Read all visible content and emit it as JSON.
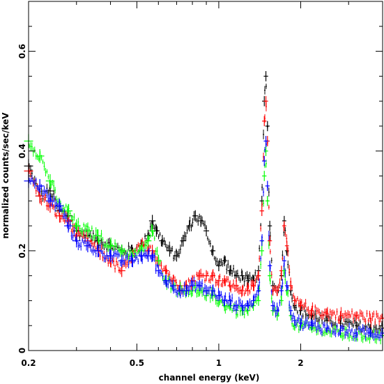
{
  "chart_data": {
    "type": "scatter",
    "xlabel": "channel energy (keV)",
    "ylabel": "normalized counts/sec/keV",
    "xscale": "log",
    "xlim": [
      0.2,
      4.0
    ],
    "ylim": [
      0,
      0.7
    ],
    "x_ticks": [
      {
        "value": 0.2,
        "label": "0.2"
      },
      {
        "value": 0.5,
        "label": "0.5"
      },
      {
        "value": 1,
        "label": "1"
      },
      {
        "value": 2,
        "label": "2"
      }
    ],
    "y_ticks": [
      {
        "value": 0,
        "label": "0"
      },
      {
        "value": 0.2,
        "label": "0.2"
      },
      {
        "value": 0.4,
        "label": "0.4"
      },
      {
        "value": 0.6,
        "label": "0.6"
      }
    ],
    "grid": false,
    "legend": "none",
    "series": [
      {
        "color": "#000000",
        "points": [
          [
            0.2,
            0.37
          ],
          [
            0.22,
            0.31
          ],
          [
            0.24,
            0.32
          ],
          [
            0.26,
            0.28
          ],
          [
            0.28,
            0.27
          ],
          [
            0.3,
            0.24
          ],
          [
            0.33,
            0.23
          ],
          [
            0.36,
            0.22
          ],
          [
            0.4,
            0.21
          ],
          [
            0.44,
            0.2
          ],
          [
            0.48,
            0.2
          ],
          [
            0.52,
            0.21
          ],
          [
            0.55,
            0.23
          ],
          [
            0.57,
            0.26
          ],
          [
            0.59,
            0.24
          ],
          [
            0.62,
            0.22
          ],
          [
            0.66,
            0.2
          ],
          [
            0.7,
            0.19
          ],
          [
            0.74,
            0.22
          ],
          [
            0.78,
            0.25
          ],
          [
            0.82,
            0.27
          ],
          [
            0.86,
            0.26
          ],
          [
            0.9,
            0.24
          ],
          [
            0.95,
            0.2
          ],
          [
            1.0,
            0.17
          ],
          [
            1.05,
            0.18
          ],
          [
            1.1,
            0.16
          ],
          [
            1.16,
            0.15
          ],
          [
            1.22,
            0.15
          ],
          [
            1.28,
            0.14
          ],
          [
            1.34,
            0.14
          ],
          [
            1.4,
            0.16
          ],
          [
            1.44,
            0.3
          ],
          [
            1.47,
            0.5
          ],
          [
            1.49,
            0.55
          ],
          [
            1.51,
            0.45
          ],
          [
            1.54,
            0.25
          ],
          [
            1.58,
            0.13
          ],
          [
            1.64,
            0.12
          ],
          [
            1.7,
            0.15
          ],
          [
            1.74,
            0.26
          ],
          [
            1.78,
            0.2
          ],
          [
            1.84,
            0.12
          ],
          [
            1.9,
            0.09
          ],
          [
            2.0,
            0.08
          ],
          [
            2.2,
            0.07
          ],
          [
            2.5,
            0.06
          ],
          [
            2.8,
            0.055
          ],
          [
            3.2,
            0.05
          ],
          [
            3.6,
            0.045
          ],
          [
            4.0,
            0.045
          ]
        ]
      },
      {
        "color": "#ff0000",
        "points": [
          [
            0.2,
            0.36
          ],
          [
            0.22,
            0.31
          ],
          [
            0.24,
            0.29
          ],
          [
            0.26,
            0.27
          ],
          [
            0.28,
            0.26
          ],
          [
            0.3,
            0.23
          ],
          [
            0.33,
            0.22
          ],
          [
            0.36,
            0.2
          ],
          [
            0.4,
            0.18
          ],
          [
            0.44,
            0.16
          ],
          [
            0.48,
            0.19
          ],
          [
            0.52,
            0.21
          ],
          [
            0.55,
            0.2
          ],
          [
            0.57,
            0.2
          ],
          [
            0.6,
            0.18
          ],
          [
            0.64,
            0.16
          ],
          [
            0.68,
            0.14
          ],
          [
            0.72,
            0.13
          ],
          [
            0.76,
            0.13
          ],
          [
            0.8,
            0.14
          ],
          [
            0.85,
            0.15
          ],
          [
            0.9,
            0.15
          ],
          [
            0.95,
            0.15
          ],
          [
            1.0,
            0.14
          ],
          [
            1.05,
            0.14
          ],
          [
            1.1,
            0.13
          ],
          [
            1.16,
            0.13
          ],
          [
            1.22,
            0.12
          ],
          [
            1.28,
            0.12
          ],
          [
            1.34,
            0.13
          ],
          [
            1.4,
            0.15
          ],
          [
            1.44,
            0.28
          ],
          [
            1.47,
            0.46
          ],
          [
            1.49,
            0.5
          ],
          [
            1.51,
            0.42
          ],
          [
            1.54,
            0.22
          ],
          [
            1.58,
            0.12
          ],
          [
            1.64,
            0.12
          ],
          [
            1.7,
            0.16
          ],
          [
            1.74,
            0.25
          ],
          [
            1.78,
            0.21
          ],
          [
            1.84,
            0.13
          ],
          [
            1.9,
            0.1
          ],
          [
            2.0,
            0.09
          ],
          [
            2.2,
            0.08
          ],
          [
            2.5,
            0.075
          ],
          [
            2.8,
            0.07
          ],
          [
            3.2,
            0.07
          ],
          [
            3.6,
            0.065
          ],
          [
            4.0,
            0.065
          ]
        ]
      },
      {
        "color": "#00ff00",
        "points": [
          [
            0.2,
            0.42
          ],
          [
            0.22,
            0.39
          ],
          [
            0.24,
            0.34
          ],
          [
            0.26,
            0.29
          ],
          [
            0.28,
            0.28
          ],
          [
            0.3,
            0.25
          ],
          [
            0.33,
            0.24
          ],
          [
            0.36,
            0.23
          ],
          [
            0.4,
            0.21
          ],
          [
            0.44,
            0.2
          ],
          [
            0.48,
            0.19
          ],
          [
            0.52,
            0.2
          ],
          [
            0.55,
            0.22
          ],
          [
            0.57,
            0.24
          ],
          [
            0.6,
            0.18
          ],
          [
            0.64,
            0.14
          ],
          [
            0.68,
            0.13
          ],
          [
            0.72,
            0.12
          ],
          [
            0.76,
            0.12
          ],
          [
            0.8,
            0.12
          ],
          [
            0.85,
            0.12
          ],
          [
            0.9,
            0.11
          ],
          [
            0.95,
            0.11
          ],
          [
            1.0,
            0.1
          ],
          [
            1.05,
            0.09
          ],
          [
            1.1,
            0.09
          ],
          [
            1.16,
            0.08
          ],
          [
            1.22,
            0.08
          ],
          [
            1.28,
            0.08
          ],
          [
            1.34,
            0.09
          ],
          [
            1.4,
            0.1
          ],
          [
            1.44,
            0.2
          ],
          [
            1.47,
            0.35
          ],
          [
            1.49,
            0.4
          ],
          [
            1.51,
            0.3
          ],
          [
            1.54,
            0.15
          ],
          [
            1.58,
            0.08
          ],
          [
            1.64,
            0.07
          ],
          [
            1.7,
            0.1
          ],
          [
            1.74,
            0.16
          ],
          [
            1.78,
            0.12
          ],
          [
            1.84,
            0.07
          ],
          [
            1.9,
            0.05
          ],
          [
            2.0,
            0.05
          ],
          [
            2.2,
            0.045
          ],
          [
            2.5,
            0.04
          ],
          [
            2.8,
            0.035
          ],
          [
            3.2,
            0.03
          ],
          [
            3.6,
            0.03
          ],
          [
            4.0,
            0.03
          ]
        ]
      },
      {
        "color": "#0000ff",
        "points": [
          [
            0.2,
            0.34
          ],
          [
            0.22,
            0.33
          ],
          [
            0.24,
            0.3
          ],
          [
            0.26,
            0.29
          ],
          [
            0.28,
            0.25
          ],
          [
            0.3,
            0.22
          ],
          [
            0.33,
            0.21
          ],
          [
            0.36,
            0.2
          ],
          [
            0.4,
            0.19
          ],
          [
            0.44,
            0.18
          ],
          [
            0.48,
            0.18
          ],
          [
            0.52,
            0.19
          ],
          [
            0.55,
            0.19
          ],
          [
            0.57,
            0.19
          ],
          [
            0.6,
            0.16
          ],
          [
            0.64,
            0.14
          ],
          [
            0.68,
            0.13
          ],
          [
            0.72,
            0.12
          ],
          [
            0.76,
            0.12
          ],
          [
            0.8,
            0.13
          ],
          [
            0.85,
            0.13
          ],
          [
            0.9,
            0.12
          ],
          [
            0.95,
            0.12
          ],
          [
            1.0,
            0.11
          ],
          [
            1.05,
            0.1
          ],
          [
            1.1,
            0.1
          ],
          [
            1.16,
            0.09
          ],
          [
            1.22,
            0.09
          ],
          [
            1.28,
            0.09
          ],
          [
            1.34,
            0.1
          ],
          [
            1.4,
            0.12
          ],
          [
            1.44,
            0.22
          ],
          [
            1.47,
            0.38
          ],
          [
            1.49,
            0.42
          ],
          [
            1.51,
            0.33
          ],
          [
            1.54,
            0.17
          ],
          [
            1.58,
            0.09
          ],
          [
            1.64,
            0.08
          ],
          [
            1.7,
            0.12
          ],
          [
            1.74,
            0.18
          ],
          [
            1.78,
            0.13
          ],
          [
            1.84,
            0.08
          ],
          [
            1.9,
            0.06
          ],
          [
            2.0,
            0.055
          ],
          [
            2.2,
            0.05
          ],
          [
            2.5,
            0.045
          ],
          [
            2.8,
            0.04
          ],
          [
            3.2,
            0.035
          ],
          [
            3.6,
            0.035
          ],
          [
            4.0,
            0.035
          ]
        ]
      }
    ]
  }
}
